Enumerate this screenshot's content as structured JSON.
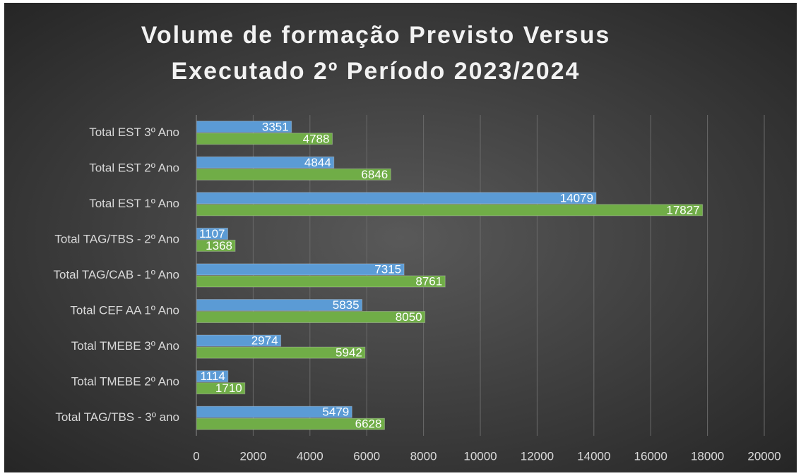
{
  "chart_data": {
    "type": "hbar",
    "title": [
      "Volume de formação Previsto Versus",
      "Executado 2º Período 2023/2024"
    ],
    "categories": [
      "Total EST 3º Ano",
      "Total EST 2º Ano",
      "Total EST 1º Ano",
      "Total TAG/TBS - 2º Ano",
      "Total TAG/CAB - 1º Ano",
      "Total CEF AA 1º Ano",
      "Total TMEBE 3º Ano",
      "Total TMEBE 2º Ano",
      "Total TAG/TBS - 3º ano"
    ],
    "series": [
      {
        "color": "#5b9bd5",
        "values": [
          3351,
          4844,
          14079,
          1107,
          7315,
          5835,
          2974,
          1114,
          5479
        ]
      },
      {
        "color": "#70ad47",
        "values": [
          4788,
          6846,
          17827,
          1368,
          8761,
          8050,
          5942,
          1710,
          6628
        ]
      }
    ],
    "xlim": [
      0,
      20000
    ],
    "xticks": [
      0,
      2000,
      4000,
      6000,
      8000,
      10000,
      12000,
      14000,
      16000,
      18000,
      20000
    ],
    "grid": true
  }
}
